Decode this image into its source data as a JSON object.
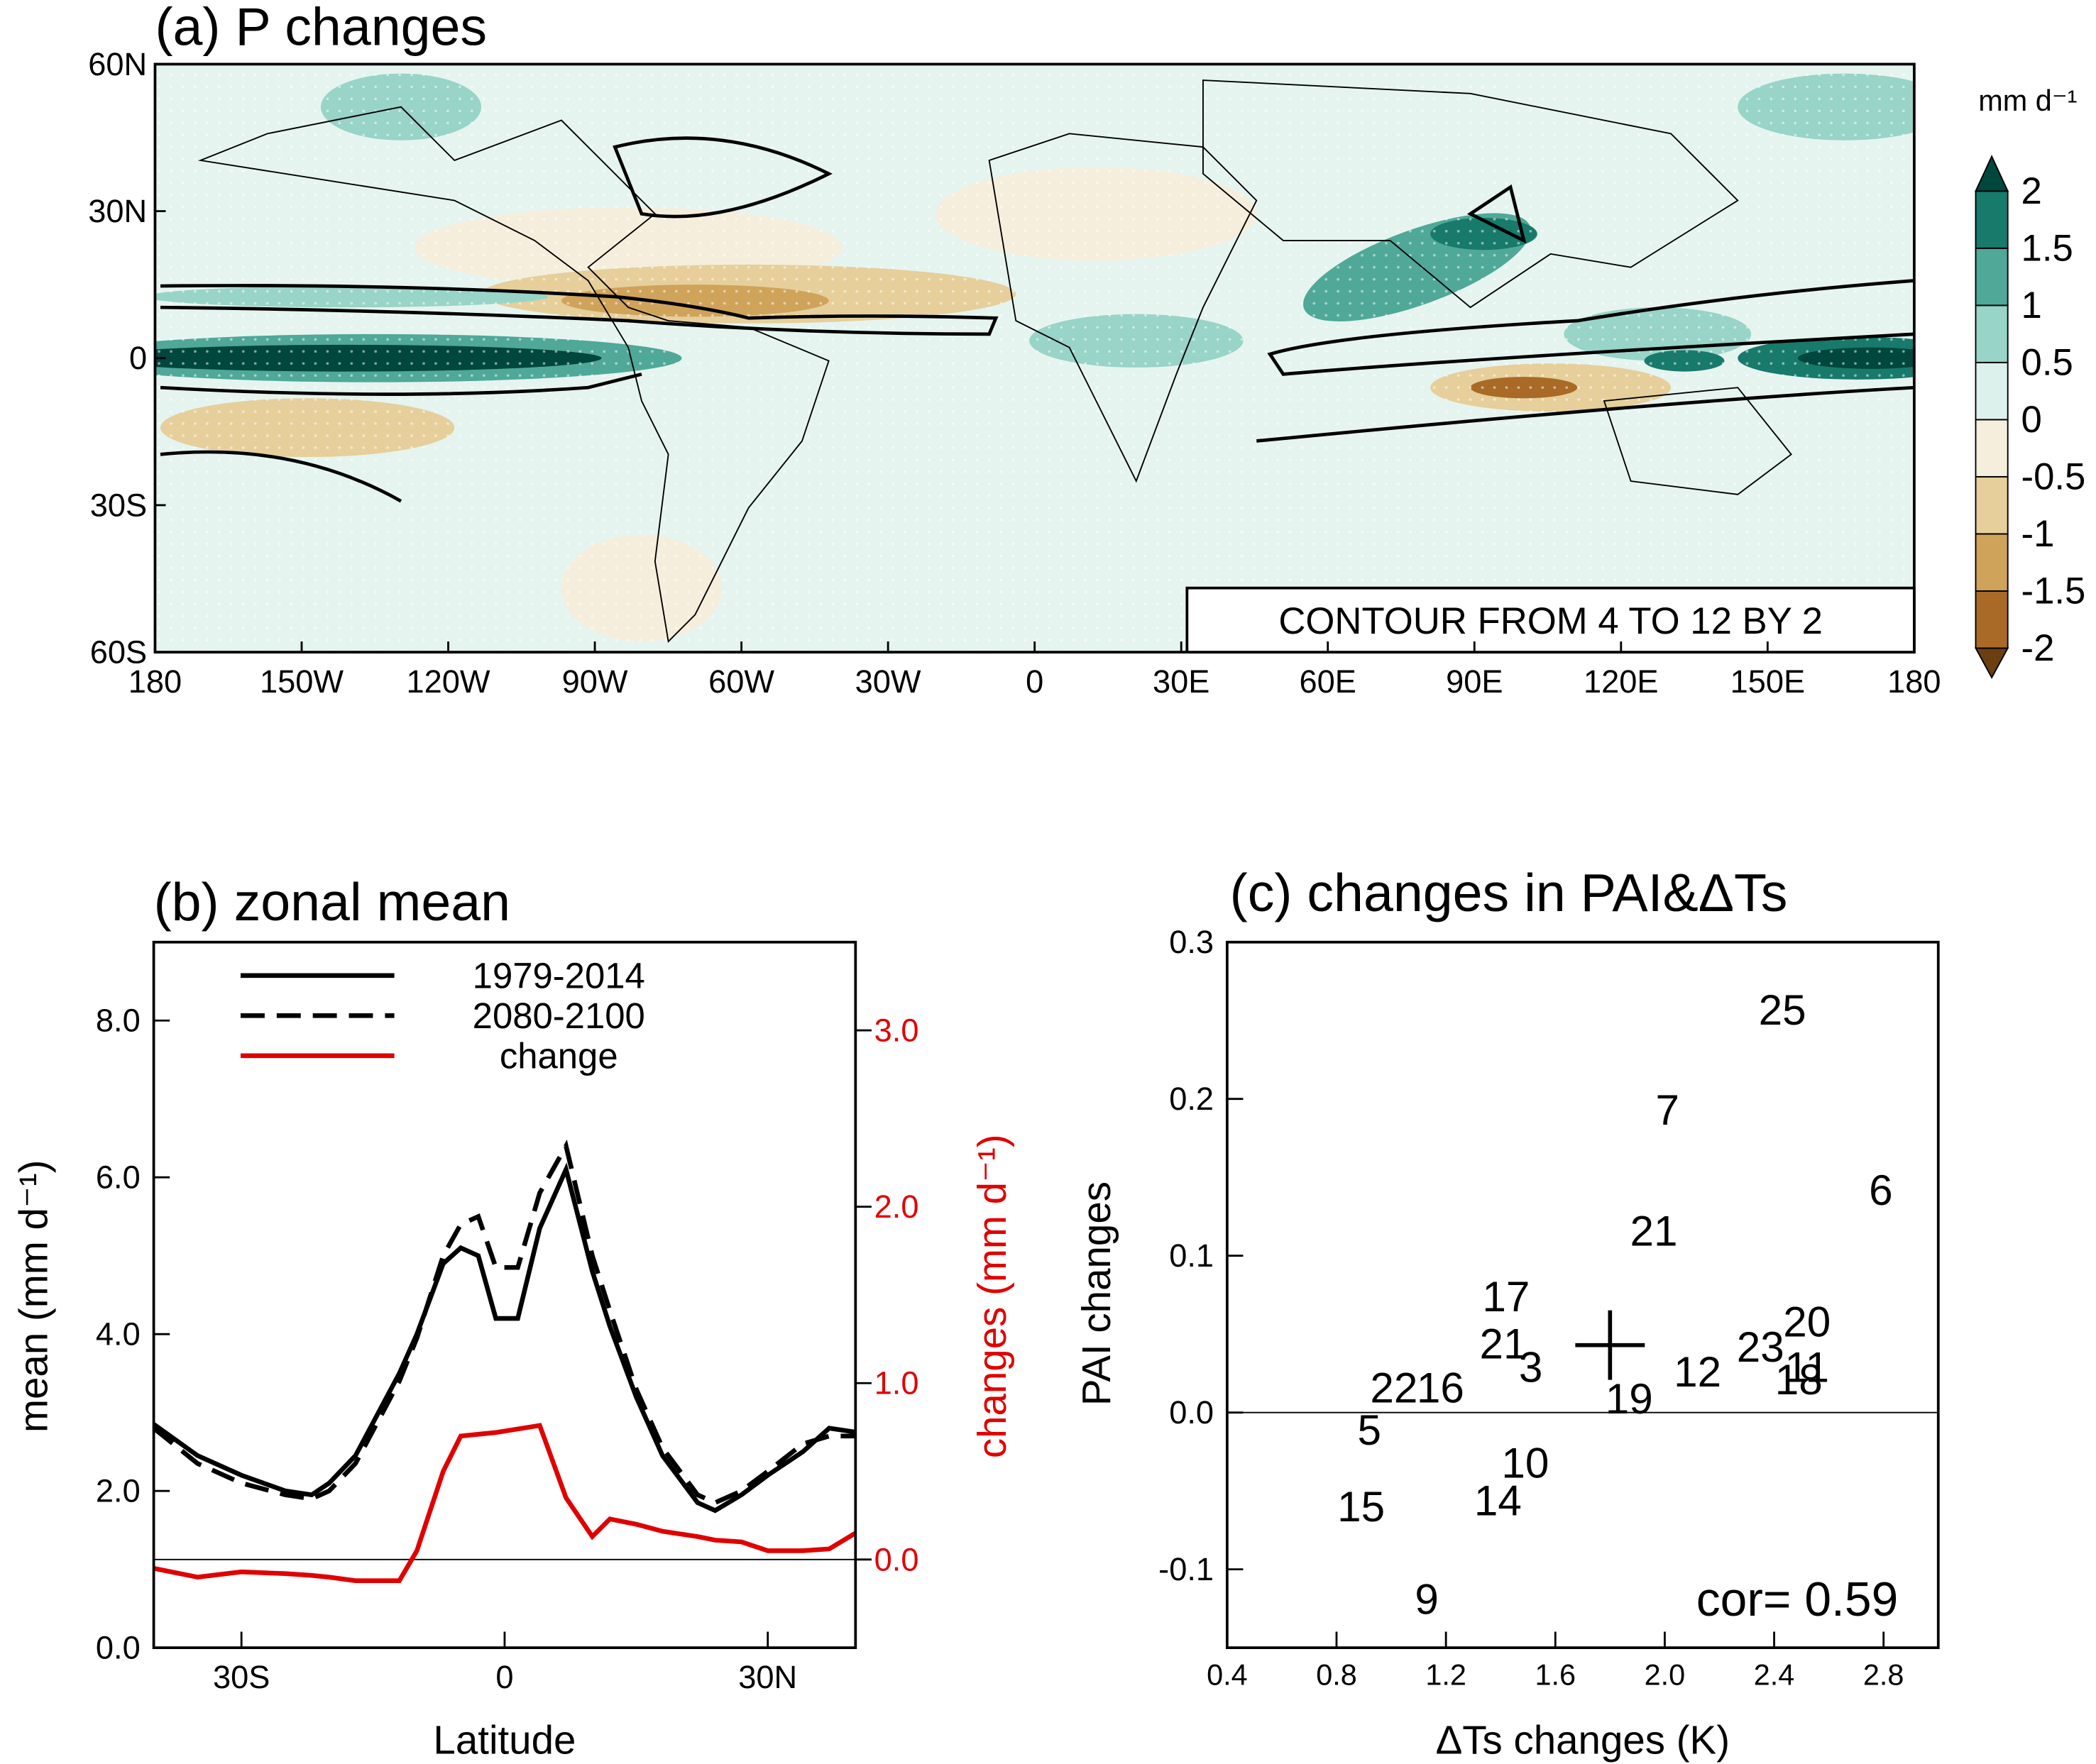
{
  "chart_data": [
    {
      "type": "map",
      "title": "(a) P changes",
      "xlim": [
        -180,
        180
      ],
      "ylim": [
        -60,
        60
      ],
      "xticks": [
        {
          "value": -180,
          "label": "180"
        },
        {
          "value": -150,
          "label": "150W"
        },
        {
          "value": -120,
          "label": "120W"
        },
        {
          "value": -90,
          "label": "90W"
        },
        {
          "value": -60,
          "label": "60W"
        },
        {
          "value": -30,
          "label": "30W"
        },
        0,
        {
          "value": 30,
          "label": "30E"
        },
        {
          "value": 60,
          "label": "60E"
        },
        {
          "value": 90,
          "label": "90E"
        },
        {
          "value": 120,
          "label": "120E"
        },
        {
          "value": 150,
          "label": "150E"
        },
        180
      ],
      "yticks": [
        {
          "value": 60,
          "label": "60N"
        },
        {
          "value": 30,
          "label": "30N"
        },
        0,
        {
          "value": -30,
          "label": "30S"
        },
        {
          "value": -60,
          "label": "60S"
        }
      ],
      "colorbar_unit": "mm d⁻¹",
      "colorbar_levels": [
        -2,
        -1.5,
        -1,
        -0.5,
        0,
        0.5,
        1,
        1.5,
        2
      ],
      "colorbar_colors": [
        "#6b3f10",
        "#a86a26",
        "#cfa35a",
        "#e6cf9a",
        "#f6eedc",
        "#ddf1ec",
        "#98d4c7",
        "#4fa898",
        "#177a6b",
        "#00473d"
      ],
      "annotation": "CONTOUR FROM 4 TO 12 BY 2"
    },
    {
      "type": "line",
      "title": "(b) zonal mean",
      "xlabel": "Latitude",
      "ylabel": "mean (mm d⁻¹)",
      "y2label": "changes (mm d⁻¹)",
      "x": [
        -40,
        -35,
        -30,
        -25,
        -22,
        -20,
        -17,
        -12,
        -10,
        -7,
        -5,
        -3,
        -1,
        1.5,
        4,
        7,
        10,
        12,
        15,
        18,
        22,
        24,
        27,
        30,
        34,
        37,
        40
      ],
      "xlim": [
        -40,
        40
      ],
      "xticks": [
        {
          "value": -30,
          "label": "30S"
        },
        0,
        {
          "value": 30,
          "label": "30N"
        }
      ],
      "ylim": [
        0,
        9
      ],
      "yticks": [
        {
          "value": 0,
          "label": "0.0"
        },
        {
          "value": 2,
          "label": "2.0"
        },
        {
          "value": 4,
          "label": "4.0"
        },
        {
          "value": 6,
          "label": "6.0"
        },
        {
          "value": 8,
          "label": "8.0"
        }
      ],
      "y2lim": [
        -0.5,
        3.5
      ],
      "y2ticks": [
        {
          "value": 0,
          "label": "0.0"
        },
        {
          "value": 1,
          "label": "1.0"
        },
        {
          "value": 2,
          "label": "2.0"
        },
        {
          "value": 3,
          "label": "3.0"
        }
      ],
      "reference_line": {
        "axis": "y2",
        "value": 0
      },
      "series": [
        {
          "name": "1979-2014",
          "color": "#000000",
          "dashed": false,
          "values": [
            2.85,
            2.45,
            2.2,
            2.0,
            1.95,
            2.1,
            2.45,
            3.5,
            4.0,
            4.9,
            5.1,
            5.0,
            4.2,
            4.2,
            5.35,
            6.1,
            4.8,
            4.1,
            3.2,
            2.45,
            1.85,
            1.75,
            1.95,
            2.2,
            2.5,
            2.8,
            2.75
          ]
        },
        {
          "name": "2080-2100",
          "color": "#000000",
          "dashed": true,
          "values": [
            2.8,
            2.35,
            2.1,
            1.95,
            1.9,
            2.0,
            2.35,
            3.4,
            3.95,
            5.0,
            5.4,
            5.5,
            4.85,
            4.85,
            5.8,
            6.4,
            5.0,
            4.3,
            3.3,
            2.55,
            1.95,
            1.85,
            2.0,
            2.25,
            2.6,
            2.7,
            2.7
          ]
        },
        {
          "name": "change",
          "color": "#e00000",
          "dashed": false,
          "axis": "y2",
          "values": [
            -0.05,
            -0.1,
            -0.07,
            -0.08,
            -0.09,
            -0.1,
            -0.12,
            -0.12,
            0.05,
            0.5,
            0.7,
            0.71,
            0.72,
            0.74,
            0.76,
            0.35,
            0.13,
            0.23,
            0.2,
            0.16,
            0.13,
            0.11,
            0.1,
            0.05,
            0.05,
            0.06,
            0.15
          ]
        }
      ]
    },
    {
      "type": "scatter",
      "title": "(c) changes in PAI&ΔTs",
      "xlabel": "ΔTs changes (K)",
      "ylabel": "PAI changes",
      "xlim": [
        0.4,
        3.0
      ],
      "xticks": [
        0.4,
        0.8,
        1.2,
        1.6,
        {
          "value": 2,
          "label": "2.0"
        },
        2.4,
        2.8
      ],
      "ylim": [
        -0.15,
        0.3
      ],
      "yticks": [
        -0.1,
        {
          "value": 0,
          "label": "0.0"
        },
        0.1,
        0.2,
        0.3
      ],
      "reference_line": {
        "axis": "y",
        "value": 0
      },
      "labels": [
        "25",
        "7",
        "6",
        "21",
        "17",
        "21",
        "3",
        "20",
        "23",
        "11",
        "18",
        "12",
        "19",
        "22",
        "16",
        "5",
        "10",
        "14",
        "15",
        "9"
      ],
      "x": [
        2.43,
        2.01,
        2.79,
        1.96,
        1.42,
        1.41,
        1.51,
        2.52,
        2.35,
        2.52,
        2.49,
        2.12,
        1.87,
        1.01,
        1.18,
        0.92,
        1.49,
        1.39,
        0.89,
        1.13
      ],
      "values": [
        0.257,
        0.193,
        0.142,
        0.116,
        0.074,
        0.044,
        0.029,
        0.058,
        0.042,
        0.029,
        0.021,
        0.026,
        0.009,
        0.016,
        0.016,
        -0.011,
        -0.032,
        -0.056,
        -0.06,
        -0.119
      ],
      "mean_point": {
        "x": 1.8,
        "y": 0.043
      },
      "annotation": "cor= 0.59"
    }
  ]
}
